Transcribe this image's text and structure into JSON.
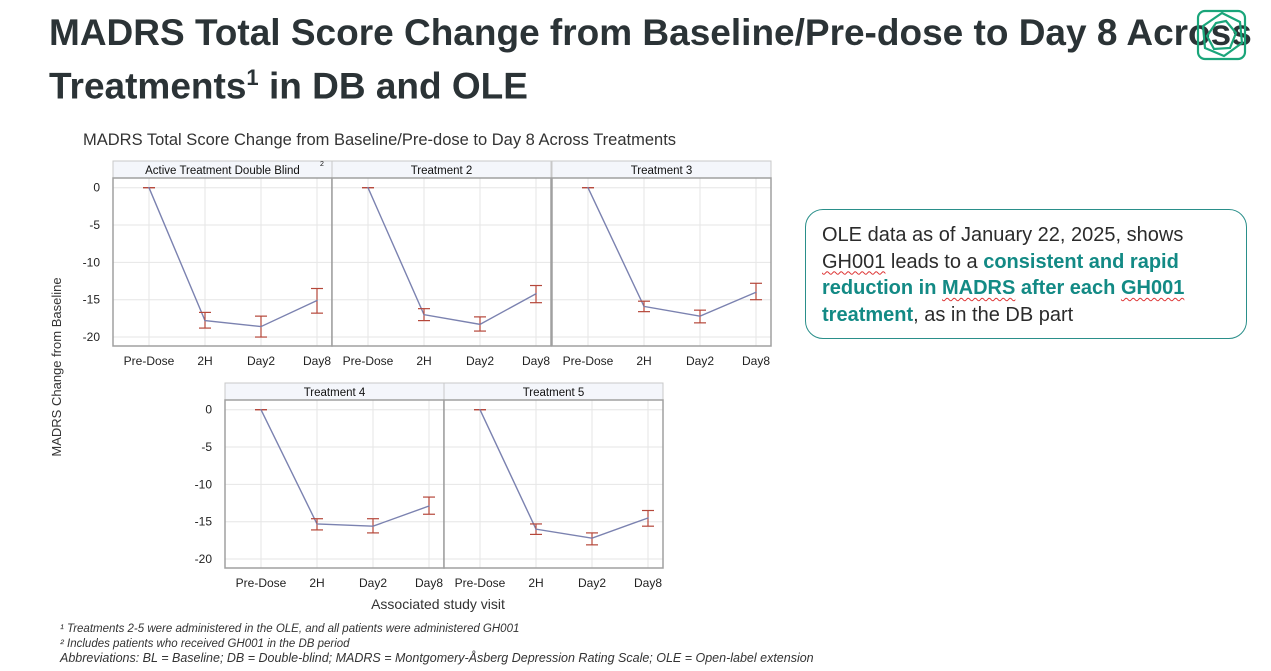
{
  "slide": {
    "title_part1": "MADRS Total Score Change from Baseline/Pre-dose to Day 8 Across Treatments",
    "title_sup": "1",
    "title_part2": " in DB and OLE",
    "brand_color": "#1aa57a"
  },
  "callout": {
    "t1": "OLE data as of January 22, 2025, shows ",
    "t2": "GH001",
    "t3": " leads to a ",
    "b1": "consistent and rapid reduction in ",
    "b2": "MADRS",
    "b3": " after each ",
    "b4": "GH001",
    "b5": " treatment",
    "t4": ", as in the DB part",
    "accent": "#138a85"
  },
  "footnotes": {
    "f1": "¹ Treatments 2-5 were administered in the OLE, and all patients were administered GH001",
    "f2": "² Includes patients who received GH001 in the DB period",
    "abbr": "Abbreviations: BL = Baseline; DB = Double-blind; MADRS = Montgomery-Åsberg Depression Rating Scale; OLE = Open-label extension"
  },
  "chart_data": {
    "type": "line",
    "title": "MADRS Total Score Change from Baseline/Pre-dose to Day 8 Across Treatments",
    "xlabel": "Associated study visit",
    "ylabel": "MADRS Change from Baseline",
    "categories": [
      "Pre-Dose",
      "2H",
      "Day2",
      "Day8"
    ],
    "yticks": [
      0,
      -5,
      -10,
      -15,
      -20
    ],
    "ylim": [
      -21.2,
      1.3
    ],
    "grid": true,
    "line_color": "#7b82b0",
    "errorbar_color": "#b5473a",
    "panels": [
      {
        "name": "Active Treatment Double Blind",
        "sup": "2",
        "values": [
          0,
          -17.8,
          -18.6,
          -15.1
        ],
        "lower": [
          0,
          -18.8,
          -20.0,
          -16.8
        ],
        "upper": [
          0,
          -16.7,
          -17.2,
          -13.5
        ]
      },
      {
        "name": "Treatment 2",
        "values": [
          0,
          -17.0,
          -18.3,
          -14.2
        ],
        "lower": [
          0,
          -17.8,
          -19.2,
          -15.4
        ],
        "upper": [
          0,
          -16.2,
          -17.3,
          -13.1
        ]
      },
      {
        "name": "Treatment 3",
        "values": [
          0,
          -15.9,
          -17.2,
          -14.0
        ],
        "lower": [
          0,
          -16.6,
          -18.1,
          -15.0
        ],
        "upper": [
          0,
          -15.2,
          -16.4,
          -12.8
        ]
      },
      {
        "name": "Treatment 4",
        "values": [
          0,
          -15.3,
          -15.6,
          -12.9
        ],
        "lower": [
          0,
          -16.1,
          -16.5,
          -14.0
        ],
        "upper": [
          0,
          -14.6,
          -14.6,
          -11.7
        ]
      },
      {
        "name": "Treatment 5",
        "values": [
          0,
          -16.0,
          -17.2,
          -14.5
        ],
        "lower": [
          0,
          -16.7,
          -18.1,
          -15.6
        ],
        "upper": [
          0,
          -15.3,
          -16.5,
          -13.5
        ]
      }
    ]
  }
}
